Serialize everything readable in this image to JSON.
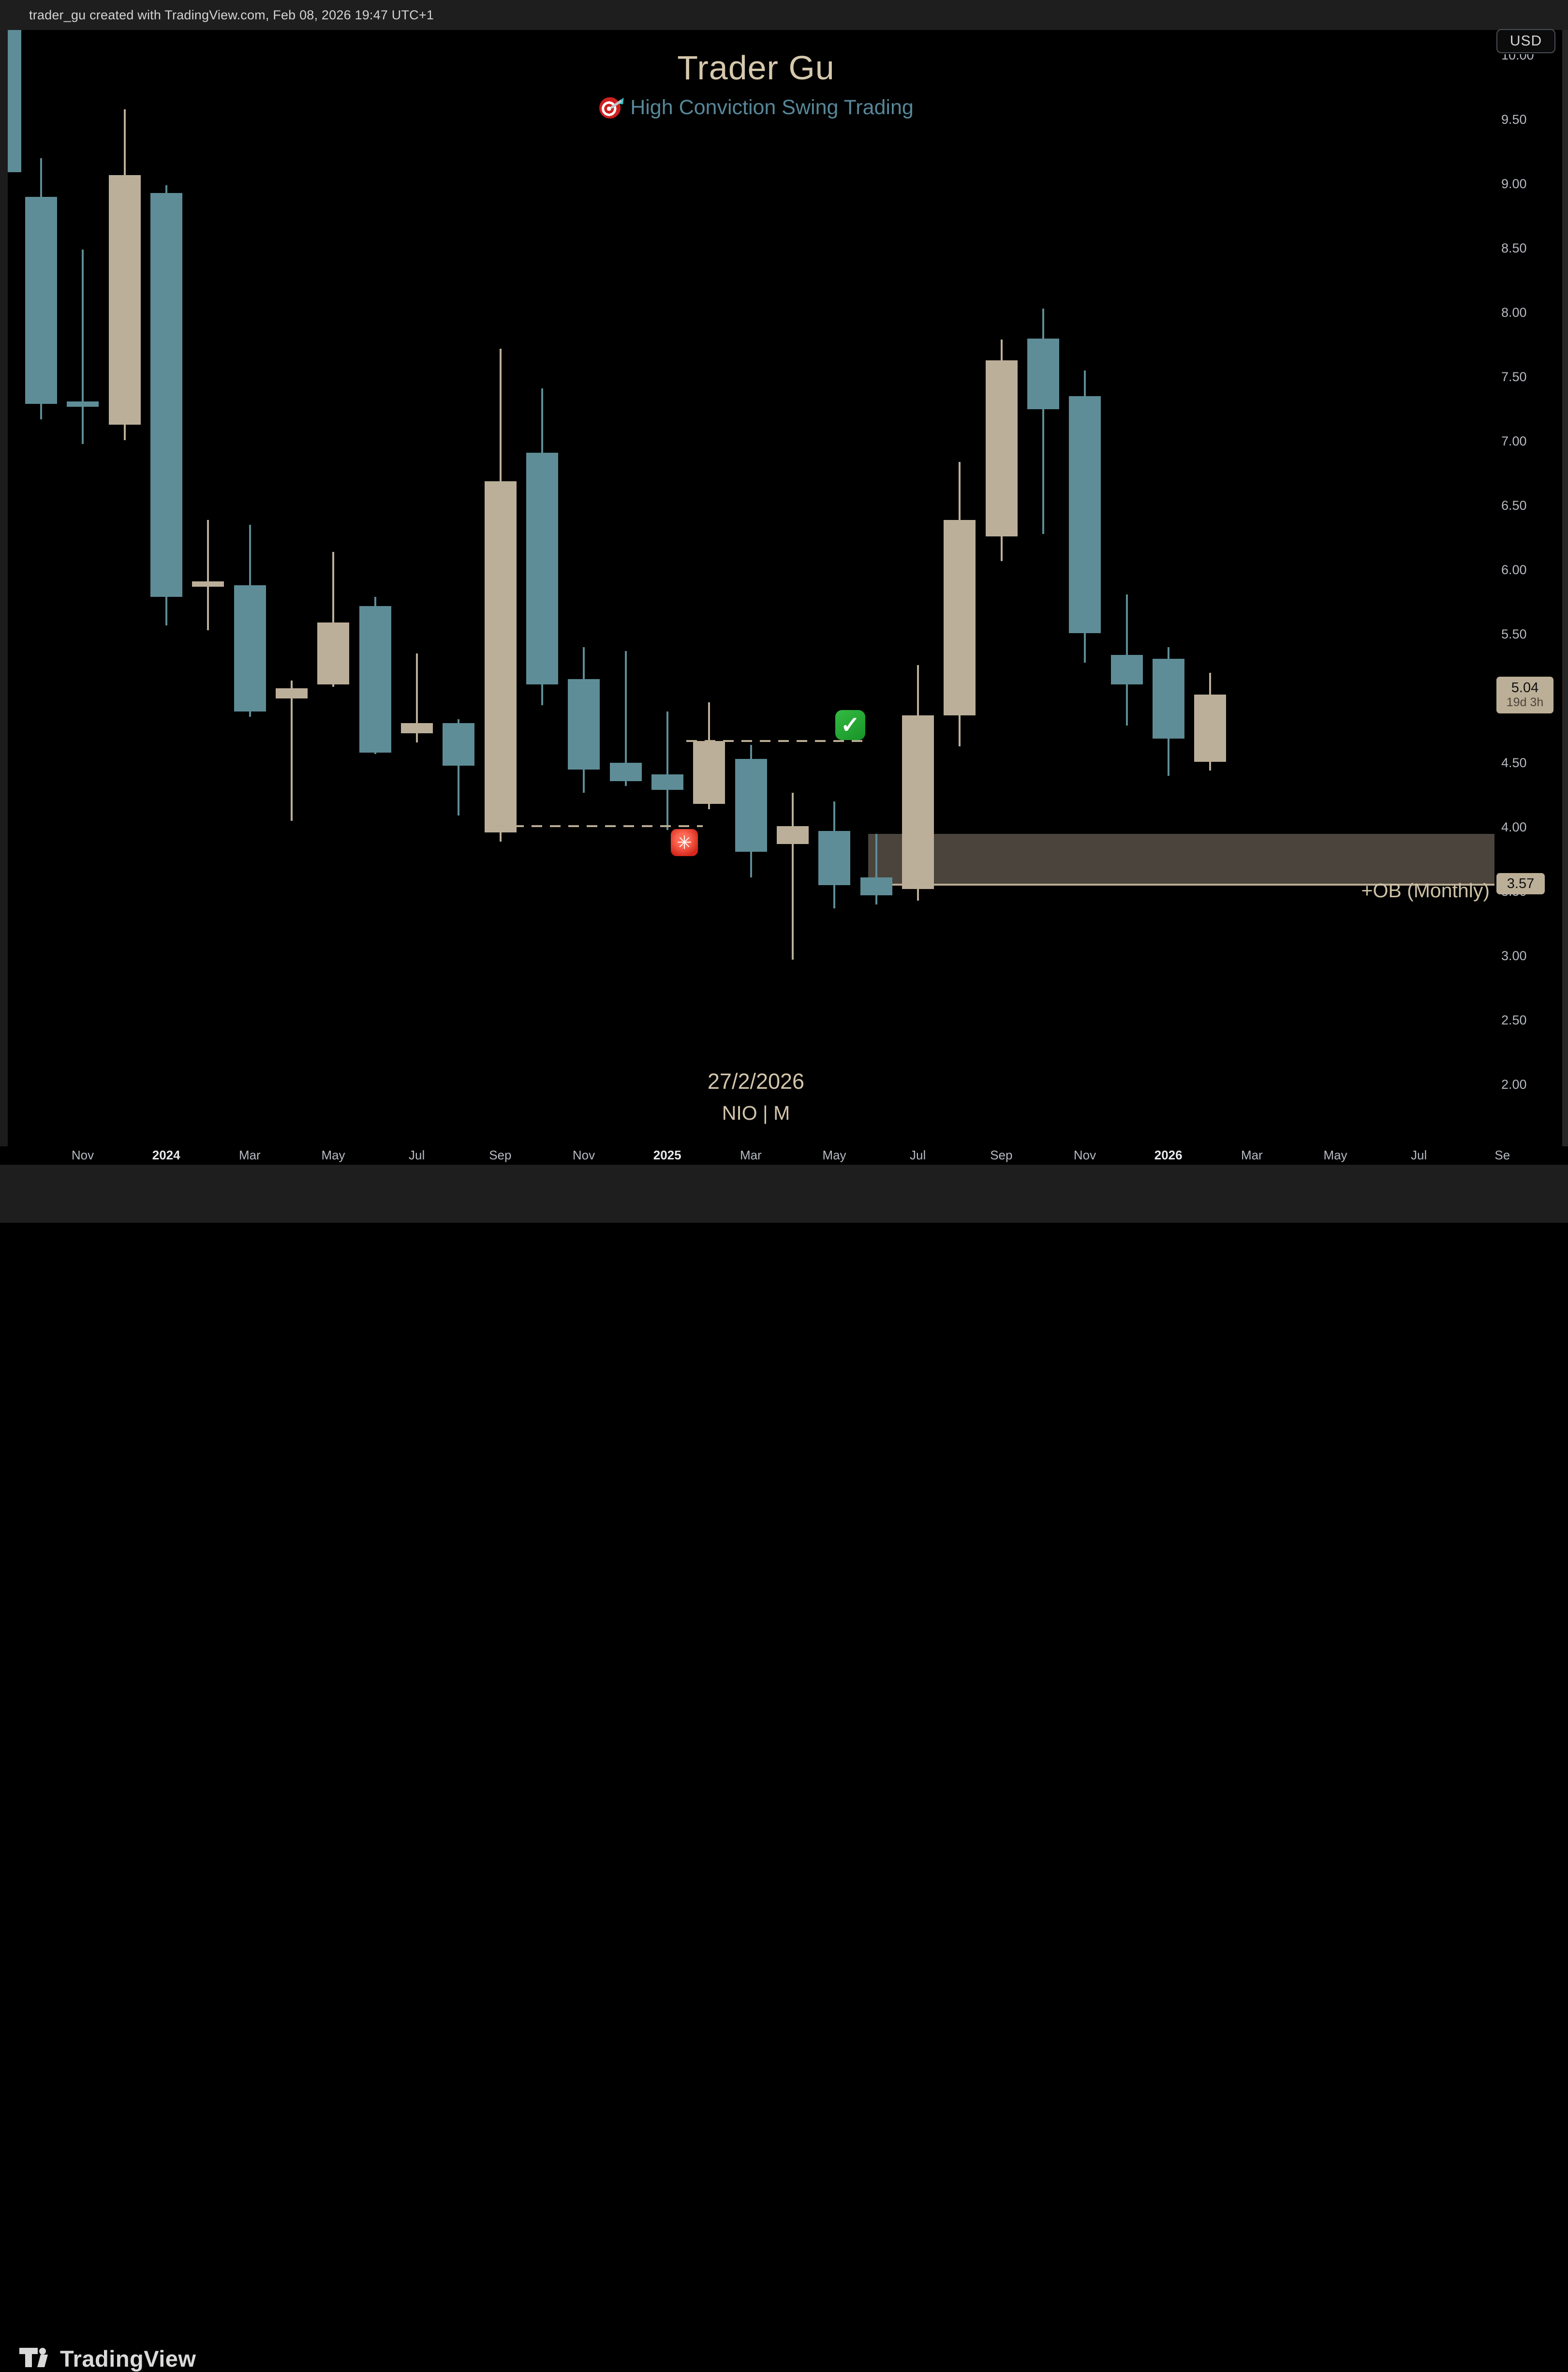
{
  "attribution": "trader_gu created with TradingView.com, Feb 08, 2026 19:47 UTC+1",
  "watermark": {
    "title": "Trader Gu",
    "subtitle": "High Conviction Swing Trading",
    "subtitle_icon": "dart-target"
  },
  "currency_button": "USD",
  "footer": {
    "date_label": "27/2/2026",
    "symbol_label": "NIO | M",
    "logo_text": "TradingView"
  },
  "price_badges": {
    "current": {
      "price": "5.04",
      "countdown": "19d 3h"
    },
    "level": {
      "price": "3.57"
    }
  },
  "ob_zone": {
    "label": "+OB (Monthly)",
    "top_price": 3.96,
    "bottom_price": 3.57
  },
  "colors": {
    "up_candle": "#BCAF99",
    "down_candle": "#5E8D97",
    "ob_fill": "#4A443C",
    "ob_border": "#B9AC93",
    "title_tan": "#D6C8AC",
    "subtitle_teal": "#578799",
    "bar_bg": "#1E1E1E",
    "axis_text": "#B7BAC2",
    "badge_bg": "#BCAF97"
  },
  "price_axis": {
    "labels": [
      "10.00",
      "9.50",
      "9.00",
      "8.50",
      "8.00",
      "7.50",
      "7.00",
      "6.50",
      "6.00",
      "5.50",
      "4.50",
      "4.00",
      "3.50",
      "3.00",
      "2.50",
      "2.00"
    ]
  },
  "time_axis": {
    "ticks": [
      {
        "label": "Nov",
        "bold": false
      },
      {
        "label": "2024",
        "bold": true
      },
      {
        "label": "Mar",
        "bold": false
      },
      {
        "label": "May",
        "bold": false
      },
      {
        "label": "Jul",
        "bold": false
      },
      {
        "label": "Sep",
        "bold": false
      },
      {
        "label": "Nov",
        "bold": false
      },
      {
        "label": "2025",
        "bold": true
      },
      {
        "label": "Mar",
        "bold": false
      },
      {
        "label": "May",
        "bold": false
      },
      {
        "label": "Jul",
        "bold": false
      },
      {
        "label": "Sep",
        "bold": false
      },
      {
        "label": "Nov",
        "bold": false
      },
      {
        "label": "2026",
        "bold": true
      },
      {
        "label": "Mar",
        "bold": false
      },
      {
        "label": "May",
        "bold": false
      },
      {
        "label": "Jul",
        "bold": false
      },
      {
        "label": "Se",
        "bold": false
      }
    ]
  },
  "chart_data": {
    "type": "candlestick",
    "symbol": "NIO",
    "timeframe": "M",
    "currency": "USD",
    "ylim": [
      2.0,
      10.3
    ],
    "grid": false,
    "legend_position": "none",
    "partial_first_candle": {
      "t": "Sep 2023",
      "direction": "down",
      "body_top": 10.22,
      "body_bottom": 9.1,
      "clipped_left": true
    },
    "candles": [
      {
        "t": "Oct 2023",
        "o": 8.91,
        "h": 9.21,
        "l": 7.18,
        "c": 7.3
      },
      {
        "t": "Nov 2023",
        "o": 7.32,
        "h": 8.5,
        "l": 6.99,
        "c": 7.28
      },
      {
        "t": "Dec 2023",
        "o": 7.14,
        "h": 9.59,
        "l": 7.02,
        "c": 9.08
      },
      {
        "t": "Jan 2024",
        "o": 8.94,
        "h": 9.0,
        "l": 5.58,
        "c": 5.8
      },
      {
        "t": "Feb 2024",
        "o": 5.88,
        "h": 6.4,
        "l": 5.54,
        "c": 5.92
      },
      {
        "t": "Mar 2024",
        "o": 5.89,
        "h": 6.36,
        "l": 4.87,
        "c": 4.91
      },
      {
        "t": "Apr 2024",
        "o": 5.01,
        "h": 5.15,
        "l": 4.06,
        "c": 5.09
      },
      {
        "t": "May 2024",
        "o": 5.12,
        "h": 6.15,
        "l": 5.1,
        "c": 5.6
      },
      {
        "t": "Jun 2024",
        "o": 5.73,
        "h": 5.8,
        "l": 4.58,
        "c": 4.59
      },
      {
        "t": "Jul 2024",
        "o": 4.74,
        "h": 5.36,
        "l": 4.67,
        "c": 4.82
      },
      {
        "t": "Aug 2024",
        "o": 4.82,
        "h": 4.85,
        "l": 4.1,
        "c": 4.49
      },
      {
        "t": "Sep 2024",
        "o": 3.97,
        "h": 7.73,
        "l": 3.9,
        "c": 6.7
      },
      {
        "t": "Oct 2024",
        "o": 6.92,
        "h": 7.42,
        "l": 4.96,
        "c": 5.12
      },
      {
        "t": "Nov 2024",
        "o": 5.16,
        "h": 5.41,
        "l": 4.28,
        "c": 4.46
      },
      {
        "t": "Dec 2024",
        "o": 4.51,
        "h": 5.38,
        "l": 4.33,
        "c": 4.37
      },
      {
        "t": "Jan 2025",
        "o": 4.42,
        "h": 4.91,
        "l": 3.99,
        "c": 4.3
      },
      {
        "t": "Feb 2025",
        "o": 4.19,
        "h": 4.98,
        "l": 4.15,
        "c": 4.68
      },
      {
        "t": "Mar 2025",
        "o": 4.54,
        "h": 4.65,
        "l": 3.62,
        "c": 3.82
      },
      {
        "t": "Apr 2025",
        "o": 3.88,
        "h": 4.28,
        "l": 2.98,
        "c": 4.02
      },
      {
        "t": "May 2025",
        "o": 3.98,
        "h": 4.21,
        "l": 3.38,
        "c": 3.56
      },
      {
        "t": "Jun 2025",
        "o": 3.62,
        "h": 3.96,
        "l": 3.41,
        "c": 3.48
      },
      {
        "t": "Jul 2025",
        "o": 3.53,
        "h": 5.27,
        "l": 3.44,
        "c": 4.88
      },
      {
        "t": "Aug 2025",
        "o": 4.88,
        "h": 6.85,
        "l": 4.64,
        "c": 6.4
      },
      {
        "t": "Sep 2025",
        "o": 6.27,
        "h": 7.8,
        "l": 6.08,
        "c": 7.64
      },
      {
        "t": "Oct 2025",
        "o": 7.81,
        "h": 8.04,
        "l": 6.29,
        "c": 7.26
      },
      {
        "t": "Nov 2025",
        "o": 7.36,
        "h": 7.56,
        "l": 5.29,
        "c": 5.52
      },
      {
        "t": "Dec 2025",
        "o": 5.35,
        "h": 5.82,
        "l": 4.8,
        "c": 5.12
      },
      {
        "t": "Jan 2026",
        "o": 5.32,
        "h": 5.41,
        "l": 4.41,
        "c": 4.7
      },
      {
        "t": "Feb 2026",
        "o": 4.52,
        "h": 5.21,
        "l": 4.45,
        "c": 5.04
      }
    ],
    "levels": [
      {
        "name": "sweep-level",
        "price": 4.02,
        "x1": 1023,
        "x2": 1453,
        "style": "dashed"
      },
      {
        "name": "break-level",
        "price": 4.68,
        "x1": 1419,
        "x2": 1793,
        "style": "dashed"
      }
    ],
    "markers": [
      {
        "icon": "check",
        "x": 1758,
        "y": 1499
      },
      {
        "icon": "siren",
        "x": 1415,
        "y": 1742
      }
    ],
    "current_price": 5.04,
    "countdown": "19d 3h",
    "ob_zone": {
      "label": "+OB (Monthly)",
      "top_price": 3.96,
      "bottom_price": 3.57,
      "x_start": 1795,
      "x_end": 3090
    }
  }
}
